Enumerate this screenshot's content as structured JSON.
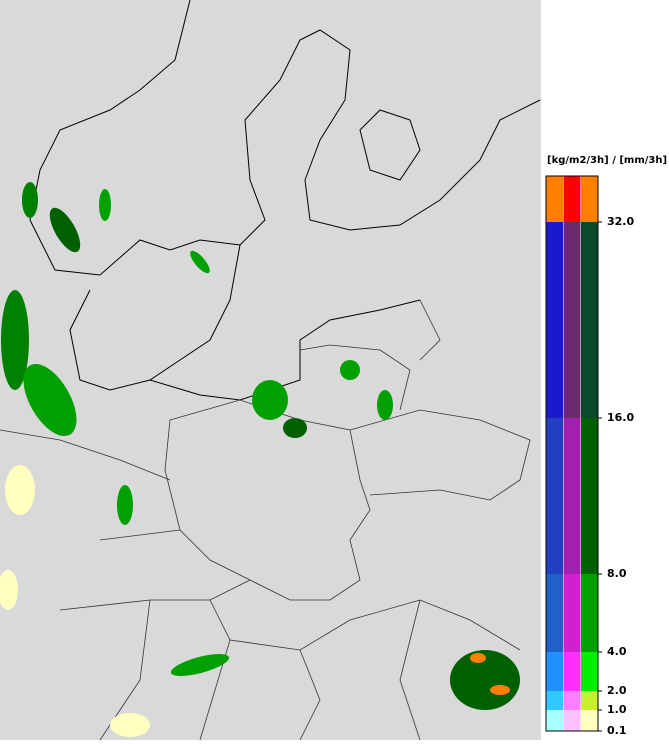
{
  "legend": {
    "title": "[kg/m2/3h] / [mm/3h]",
    "ticks": [
      {
        "value": 0.1,
        "label": "0.1"
      },
      {
        "value": 1,
        "label": "1.0"
      },
      {
        "value": 2,
        "label": "2.0"
      },
      {
        "value": 4,
        "label": "4.0"
      },
      {
        "value": 8,
        "label": "8.0"
      },
      {
        "value": 16,
        "label": "16.0"
      },
      {
        "value": 32,
        "label": "32.0"
      }
    ],
    "bands": [
      [
        "#a8ffff",
        "#ffc0ff",
        "#ffffc0"
      ],
      [
        "#30c8ff",
        "#ff80ff",
        "#c8f030"
      ],
      [
        "#2090ff",
        "#ff30ff",
        "#00f000"
      ],
      [
        "#2060c8",
        "#d020d0",
        "#00a000"
      ],
      [
        "#2040c0",
        "#a020b0",
        "#006000"
      ],
      [
        "#1a1acc",
        "#6b2a6b",
        "#0a4a2a"
      ],
      [
        "#ff8000",
        "#ff0000",
        "#ff8000"
      ]
    ]
  }
}
